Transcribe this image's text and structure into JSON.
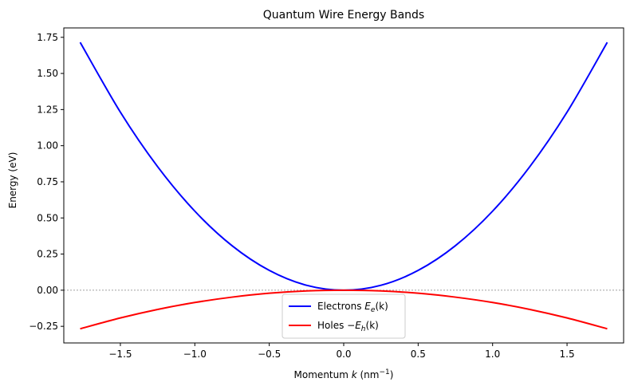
{
  "chart_data": {
    "type": "line",
    "title": "Quantum Wire Energy Bands",
    "xlabel": {
      "prefix": "Momentum ",
      "var": "k",
      "unit_open": " (nm",
      "sup": "−1",
      "unit_close": ")"
    },
    "ylabel": "Energy (eV)",
    "xlim": [
      -1.88,
      1.88
    ],
    "ylim": [
      -0.365,
      1.815
    ],
    "xticks": [
      -1.5,
      -1.0,
      -0.5,
      0.0,
      0.5,
      1.0,
      1.5
    ],
    "xtick_labels": [
      "−1.5",
      "−1.0",
      "−0.5",
      "0.0",
      "0.5",
      "1.0",
      "1.5"
    ],
    "yticks": [
      -0.25,
      0.0,
      0.25,
      0.5,
      0.75,
      1.0,
      1.25,
      1.5,
      1.75
    ],
    "ytick_labels": [
      "−0.25",
      "0.00",
      "0.25",
      "0.50",
      "0.75",
      "1.00",
      "1.25",
      "1.50",
      "1.75"
    ],
    "grid": false,
    "reference_line_y": 0,
    "legend_position": "lower-center",
    "series": [
      {
        "name": "Electrons E_e(k)",
        "label_prefix": "Electrons ",
        "label_var": "E",
        "label_sub": "e",
        "label_suffix": "(k)",
        "color": "#0000ff",
        "x": [
          -1.77,
          -1.5,
          -1.25,
          -1.0,
          -0.75,
          -0.5,
          -0.25,
          0.0,
          0.25,
          0.5,
          0.75,
          1.0,
          1.25,
          1.5,
          1.77
        ],
        "y": [
          1.715,
          1.232,
          0.855,
          0.547,
          0.308,
          0.137,
          0.034,
          0.0,
          0.034,
          0.137,
          0.308,
          0.547,
          0.855,
          1.232,
          1.715
        ]
      },
      {
        "name": "Holes −E_h(k)",
        "label_prefix": "Holes ",
        "label_var": "−E",
        "label_sub": "h",
        "label_suffix": "(k)",
        "color": "#ff0000",
        "x": [
          -1.77,
          -1.5,
          -1.25,
          -1.0,
          -0.75,
          -0.5,
          -0.25,
          0.0,
          0.25,
          0.5,
          0.75,
          1.0,
          1.25,
          1.5,
          1.77
        ],
        "y": [
          -0.267,
          -0.192,
          -0.133,
          -0.085,
          -0.048,
          -0.021,
          -0.005,
          0.0,
          -0.005,
          -0.021,
          -0.048,
          -0.085,
          -0.133,
          -0.192,
          -0.267
        ]
      }
    ]
  }
}
